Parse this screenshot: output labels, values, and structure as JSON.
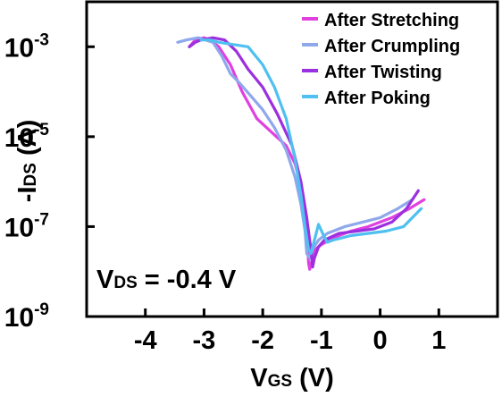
{
  "chart_data": {
    "type": "line",
    "title": "",
    "xlabel": {
      "main": "V",
      "sub": "GS",
      "unit": " (V)"
    },
    "ylabel": {
      "prefix": "-I",
      "sub": "DS",
      "unit": "  (A)"
    },
    "x_range": [
      -5.0,
      2.0
    ],
    "y_range_log10": [
      -9,
      -2
    ],
    "y_scale": "log",
    "x_ticks": [
      "-4",
      "-3",
      "-2",
      "-1",
      "0",
      "1"
    ],
    "x_tick_values": [
      -4,
      -3,
      -2,
      -1,
      0,
      1
    ],
    "y_ticks": [
      {
        "value": -3,
        "base": "10",
        "exp": "-3"
      },
      {
        "value": -5,
        "base": "10",
        "exp": "-5"
      },
      {
        "value": -7,
        "base": "10",
        "exp": "-7"
      },
      {
        "value": -9,
        "base": "10",
        "exp": "-9"
      }
    ],
    "annotation": {
      "main": "V",
      "sub": "DS",
      "rest": " = -0.4 V"
    },
    "legend_position": "top-right",
    "grid": false,
    "series": [
      {
        "name": "After Stretching",
        "color": "#e040e0",
        "x": [
          -3.25,
          -3.15,
          -3.0,
          -2.9,
          -2.75,
          -2.55,
          -2.35,
          -2.1,
          -1.85,
          -1.6,
          -1.45,
          -1.35,
          -1.28,
          -1.24,
          -1.22,
          -1.2,
          -1.15,
          -1.1,
          -1.0,
          -0.8,
          -0.5,
          -0.2,
          0.2,
          0.5,
          0.75
        ],
        "y": [
          -3.0,
          -2.85,
          -2.8,
          -2.85,
          -3.0,
          -3.4,
          -4.0,
          -4.6,
          -4.9,
          -5.2,
          -5.6,
          -6.1,
          -6.6,
          -7.3,
          -7.8,
          -7.95,
          -7.7,
          -7.5,
          -7.4,
          -7.25,
          -7.1,
          -7.0,
          -6.8,
          -6.6,
          -6.4
        ]
      },
      {
        "name": "After Crumpling",
        "color": "#8fa8ec",
        "x": [
          -3.45,
          -3.3,
          -3.1,
          -2.85,
          -2.7,
          -2.55,
          -2.4,
          -2.2,
          -2.0,
          -1.8,
          -1.6,
          -1.45,
          -1.35,
          -1.28,
          -1.25,
          -1.2,
          -1.15,
          -1.05,
          -0.9,
          -0.6,
          -0.3,
          0.0,
          0.3,
          0.55
        ],
        "y": [
          -2.9,
          -2.85,
          -2.8,
          -2.9,
          -3.2,
          -3.6,
          -3.8,
          -4.1,
          -4.4,
          -4.8,
          -5.3,
          -5.9,
          -6.5,
          -7.1,
          -7.6,
          -7.7,
          -7.5,
          -7.3,
          -7.15,
          -7.0,
          -6.9,
          -6.8,
          -6.6,
          -6.4
        ]
      },
      {
        "name": "After Twisting",
        "color": "#9b30e0",
        "x": [
          -3.25,
          -3.15,
          -3.05,
          -2.85,
          -2.65,
          -2.45,
          -2.25,
          -2.0,
          -1.75,
          -1.5,
          -1.35,
          -1.25,
          -1.18,
          -1.15,
          -1.12,
          -1.05,
          -0.95,
          -0.7,
          -0.4,
          -0.1,
          0.2,
          0.45,
          0.65
        ],
        "y": [
          -3.0,
          -2.9,
          -2.85,
          -2.8,
          -2.85,
          -3.1,
          -3.5,
          -3.9,
          -4.5,
          -5.2,
          -6.0,
          -6.8,
          -7.5,
          -7.9,
          -7.7,
          -7.45,
          -7.3,
          -7.15,
          -7.1,
          -7.05,
          -6.9,
          -6.6,
          -6.2
        ]
      },
      {
        "name": "After Poking",
        "color": "#4fc0f0",
        "x": [
          -3.05,
          -2.9,
          -2.75,
          -2.5,
          -2.25,
          -2.0,
          -1.8,
          -1.6,
          -1.45,
          -1.35,
          -1.28,
          -1.22,
          -1.18,
          -1.12,
          -1.05,
          -0.98,
          -0.9,
          -0.8,
          -0.5,
          -0.2,
          0.1,
          0.4,
          0.7
        ],
        "y": [
          -2.85,
          -2.85,
          -2.9,
          -2.95,
          -3.0,
          -3.4,
          -3.9,
          -4.6,
          -5.5,
          -6.3,
          -7.0,
          -7.5,
          -7.6,
          -7.3,
          -6.95,
          -7.15,
          -7.35,
          -7.3,
          -7.2,
          -7.15,
          -7.1,
          -7.0,
          -6.6
        ]
      }
    ]
  }
}
